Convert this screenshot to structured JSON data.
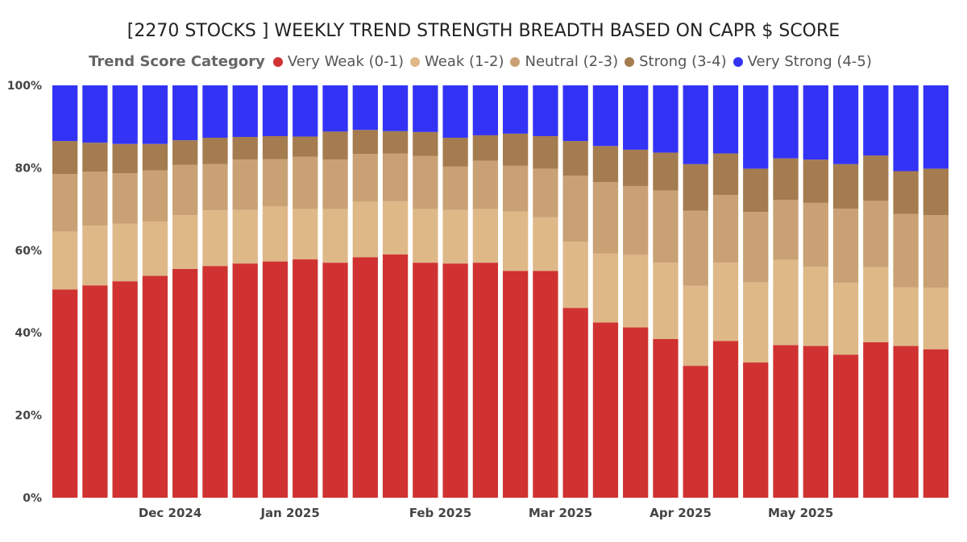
{
  "chart_data": {
    "type": "bar",
    "stacked": true,
    "normalized": true,
    "title": "[2270 STOCKS ] WEEKLY TREND STRENGTH BREADTH BASED ON CAPR $ SCORE",
    "legend_title": "Trend Score Category",
    "legend_position": "top",
    "y_ticks": [
      "0%",
      "20%",
      "40%",
      "60%",
      "80%",
      "100%"
    ],
    "ylim": [
      0,
      100
    ],
    "x_tick_labels": [
      {
        "label": "Dec 2024",
        "between": [
          3,
          4
        ]
      },
      {
        "label": "Jan 2025",
        "between": [
          7,
          8
        ]
      },
      {
        "label": "Feb 2025",
        "between": [
          12,
          13
        ]
      },
      {
        "label": "Mar 2025",
        "between": [
          16,
          17
        ]
      },
      {
        "label": "Apr 2025",
        "between": [
          20,
          21
        ]
      },
      {
        "label": "May 2025",
        "between": [
          24,
          25
        ]
      }
    ],
    "series": [
      {
        "name": "Very Weak (0-1)",
        "color": "#D03232",
        "values": [
          50.5,
          51.5,
          52.5,
          53.8,
          55.5,
          56.2,
          56.8,
          57.3,
          57.8,
          57.0,
          58.3,
          59.0,
          57.0,
          56.8,
          57.0,
          55.0,
          55.0,
          46.0,
          42.5,
          41.3,
          38.5,
          32.0,
          38.0,
          32.8,
          37.0,
          36.8,
          34.7,
          37.7,
          36.8,
          36.0
        ]
      },
      {
        "name": "Weak (1-2)",
        "color": "#DEB887",
        "values": [
          14.0,
          14.5,
          14.0,
          13.2,
          13.0,
          13.5,
          13.0,
          13.4,
          12.2,
          13.0,
          13.5,
          12.9,
          13.0,
          13.0,
          13.0,
          14.4,
          13.0,
          16.1,
          16.7,
          17.6,
          18.5,
          19.4,
          19.0,
          19.4,
          20.7,
          19.2,
          17.4,
          18.2,
          14.2,
          14.9
        ]
      },
      {
        "name": "Neutral (2-3)",
        "color": "#C9A174",
        "values": [
          14.0,
          13.1,
          12.2,
          12.4,
          12.2,
          11.2,
          12.2,
          11.4,
          12.7,
          12.0,
          11.6,
          11.6,
          12.9,
          10.5,
          11.7,
          11.1,
          11.8,
          16.0,
          17.3,
          16.7,
          17.5,
          18.2,
          16.4,
          17.1,
          14.5,
          15.5,
          18.0,
          16.1,
          17.8,
          17.6
        ]
      },
      {
        "name": "Strong (3-4)",
        "color": "#A57C4F",
        "values": [
          8.0,
          7.0,
          7.1,
          6.4,
          6.0,
          6.4,
          5.5,
          5.6,
          4.9,
          6.8,
          5.8,
          5.4,
          5.8,
          7.0,
          6.2,
          7.8,
          7.9,
          8.4,
          8.8,
          8.8,
          9.2,
          11.3,
          10.1,
          10.5,
          10.1,
          10.5,
          10.8,
          11.0,
          10.4,
          11.3
        ]
      },
      {
        "name": "Very Strong (4-5)",
        "color": "#3333F5",
        "values": [
          13.5,
          13.9,
          14.2,
          14.2,
          13.3,
          12.7,
          12.5,
          12.3,
          12.4,
          11.2,
          10.8,
          11.1,
          11.3,
          12.7,
          12.1,
          11.7,
          12.3,
          13.5,
          14.7,
          15.6,
          16.3,
          19.1,
          16.5,
          20.2,
          17.7,
          18.0,
          19.1,
          17.0,
          20.8,
          20.2
        ]
      }
    ]
  }
}
